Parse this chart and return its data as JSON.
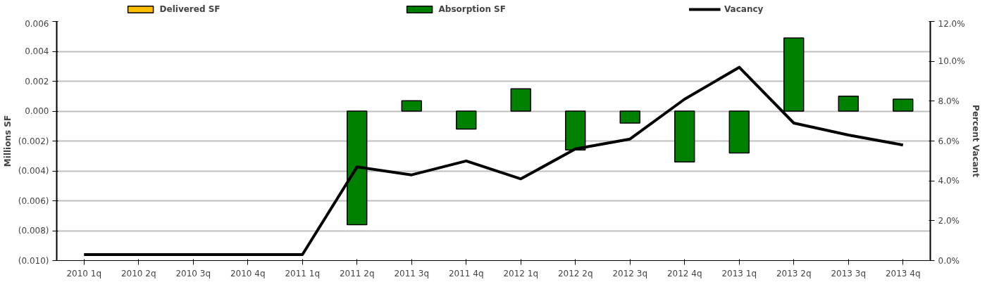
{
  "chart_data": {
    "type": "bar",
    "categories": [
      "2010 1q",
      "2010 2q",
      "2010 3q",
      "2010 4q",
      "2011 1q",
      "2011 2q",
      "2011 3q",
      "2011 4q",
      "2012 1q",
      "2012 2q",
      "2012 3q",
      "2012 4q",
      "2013 1q",
      "2013 2q",
      "2013 3q",
      "2013 4q"
    ],
    "ylabel": "Millions SF",
    "y2label": "Percent Vacant",
    "series": [
      {
        "name": "Delivered SF",
        "color": "#ffc000",
        "values": [
          null,
          null,
          null,
          null,
          null,
          null,
          null,
          null,
          null,
          null,
          null,
          null,
          null,
          null,
          null,
          null
        ]
      },
      {
        "name": "Absorption SF",
        "color": "#008000",
        "values": [
          null,
          null,
          null,
          null,
          null,
          -0.0076,
          0.0007,
          -0.0012,
          0.0015,
          -0.0026,
          -0.0008,
          -0.0034,
          -0.0028,
          0.0049,
          0.001,
          0.0008
        ]
      },
      {
        "name": "Vacancy",
        "color": "#000000",
        "type": "line",
        "axis": "y2",
        "values": [
          0.3,
          0.3,
          0.3,
          0.3,
          0.3,
          4.7,
          4.3,
          5.0,
          4.1,
          5.6,
          6.1,
          8.1,
          9.7,
          6.9,
          6.3,
          5.8
        ]
      }
    ],
    "ylim": [
      -0.01,
      0.006
    ],
    "yticks": [
      {
        "value": -0.01,
        "label": "(0.010)"
      },
      {
        "value": -0.008,
        "label": "(0.008)"
      },
      {
        "value": -0.006,
        "label": "(0.006)"
      },
      {
        "value": -0.004,
        "label": "(0.004)"
      },
      {
        "value": -0.002,
        "label": "(0.002)"
      },
      {
        "value": 0,
        "label": "0.000"
      },
      {
        "value": 0.002,
        "label": "0.002"
      },
      {
        "value": 0.004,
        "label": "0.004"
      },
      {
        "value": 0.006,
        "label": "0.006"
      }
    ],
    "y2lim": [
      0,
      12
    ],
    "y2ticks": [
      {
        "value": 0,
        "label": "0.0%"
      },
      {
        "value": 2,
        "label": "2.0%"
      },
      {
        "value": 4,
        "label": "4.0%"
      },
      {
        "value": 6,
        "label": "6.0%"
      },
      {
        "value": 8,
        "label": "8.0%"
      },
      {
        "value": 10,
        "label": "10.0%"
      },
      {
        "value": 12,
        "label": "12.0%"
      }
    ],
    "grid": "y",
    "legend": "top"
  }
}
